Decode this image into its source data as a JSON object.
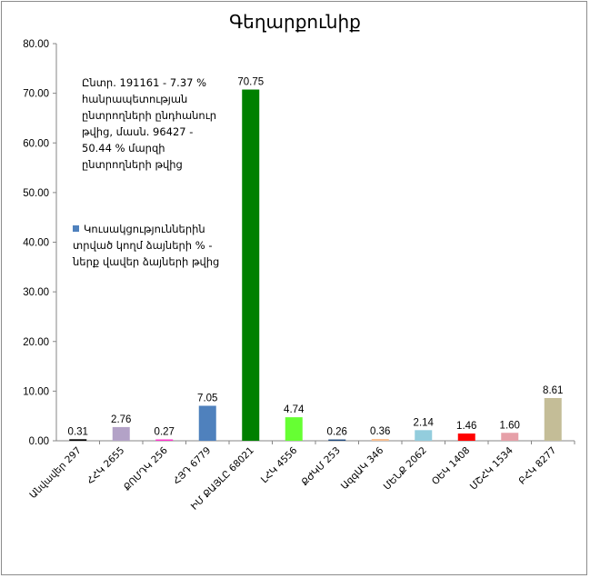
{
  "chart_data": {
    "type": "bar",
    "title": "Գեղարքունիք",
    "categories": [
      "Անվավեր 297",
      "ՀՀԿ 2655",
      "ՔՈՄԴԿ 256",
      "ՀՅԴ 6779",
      "ԻՄ ՔԱՅԼԸ 68021",
      "ԼՀԿ 4556",
      "ՔԺԿՄ 253",
      "ԱզգԱԿ 346",
      "ՄԵՆՔ 2062",
      "ՕԵԿ 1408",
      "ՄՇՀԿ 1534",
      "ԲՀԿ 8277"
    ],
    "values": [
      0.31,
      2.76,
      0.27,
      7.05,
      70.75,
      4.74,
      0.26,
      0.36,
      2.14,
      1.46,
      1.6,
      8.61
    ],
    "value_labels": [
      "0.31",
      "2.76",
      "0.27",
      "7.05",
      "70.75",
      "4.74",
      "0.26",
      "0.36",
      "2.14",
      "1.46",
      "1.60",
      "8.61"
    ],
    "colors": [
      "#000000",
      "#b3a2c7",
      "#ff33cc",
      "#4f81bd",
      "#008000",
      "#66ff33",
      "#1f497d",
      "#fabf8f",
      "#93cddd",
      "#ff0000",
      "#e6a0a8",
      "#c4bd97"
    ],
    "ylim": [
      0,
      80
    ],
    "yticks": [
      "0.00",
      "10.00",
      "20.00",
      "30.00",
      "40.00",
      "50.00",
      "60.00",
      "70.00",
      "80.00"
    ],
    "ytick_values": [
      0,
      10,
      20,
      30,
      40,
      50,
      60,
      70,
      80
    ],
    "xlabel": "",
    "ylabel": "",
    "grid": false,
    "annotation": "Ընտր. 191161 - 7.37 % հանրապետության ընտրողների ընդհանուր թվից, մասն. 96427 - 50.44 % մարզի ընտրողների թվից",
    "legend": {
      "label": "Կուսակցություններին տրված կողմ ձայների % - ներք վավեր ձայների թվից",
      "color": "#4f81bd",
      "position": "left"
    }
  }
}
